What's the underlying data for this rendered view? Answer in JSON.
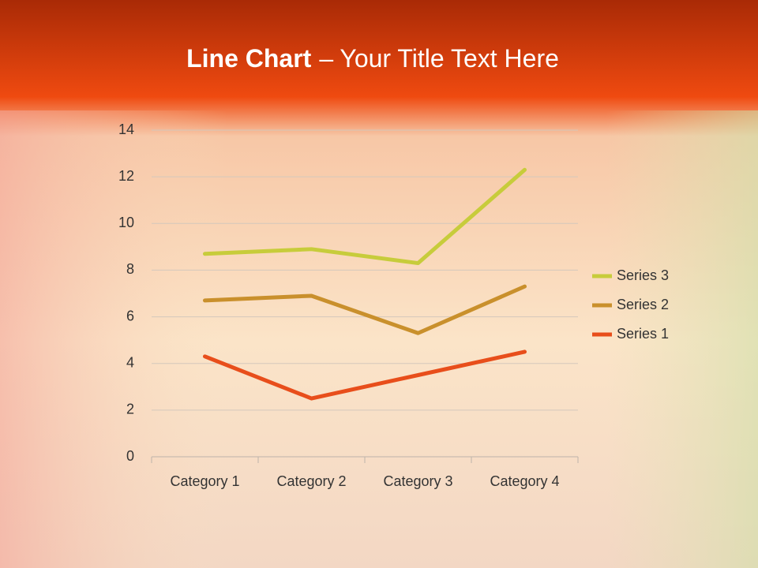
{
  "chart_data": {
    "type": "line",
    "stacked": true,
    "title": [
      "Line Chart",
      "– Your Title Text Here"
    ],
    "categories": [
      "Category 1",
      "Category 2",
      "Category 3",
      "Category 4"
    ],
    "series": [
      {
        "name": "Series 1",
        "color": "#e84e1b",
        "values": [
          4.3,
          2.5,
          3.5,
          4.5
        ]
      },
      {
        "name": "Series 2",
        "color": "#c9902c",
        "values": [
          2.4,
          4.4,
          1.8,
          2.8
        ]
      },
      {
        "name": "Series 3",
        "color": "#c7cc3b",
        "values": [
          2,
          2,
          3,
          5
        ]
      }
    ],
    "ylim": [
      0,
      14
    ],
    "yticks": [
      0,
      2,
      4,
      6,
      8,
      10,
      12,
      14
    ],
    "grid": true,
    "legend": "right"
  }
}
